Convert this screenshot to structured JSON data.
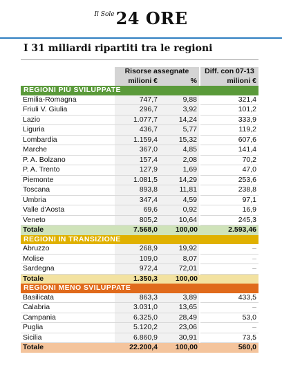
{
  "header": {
    "logo_small": "Il Sole",
    "logo_big": "24 ORE"
  },
  "title": "I 31 miliardi ripartiti tra le regioni",
  "columns": {
    "risorse": "Risorse assegnate",
    "diff": "Diff. con 07-13",
    "milioni": "milioni €",
    "pct": "%",
    "diff_unit": "milioni €"
  },
  "sections": [
    {
      "title": "REGIONI PIÙ SVILUPPATE",
      "color": "#5a9a3a",
      "rows": [
        {
          "name": "Emilia-Romagna",
          "mil": "747,7",
          "pct": "9,88",
          "diff": "321,4"
        },
        {
          "name": "Friuli V. Giulia",
          "mil": "296,7",
          "pct": "3,92",
          "diff": "101,2"
        },
        {
          "name": "Lazio",
          "mil": "1.077,7",
          "pct": "14,24",
          "diff": "333,9"
        },
        {
          "name": "Liguria",
          "mil": "436,7",
          "pct": "5,77",
          "diff": "119,2"
        },
        {
          "name": "Lombardia",
          "mil": "1.159,4",
          "pct": "15,32",
          "diff": "607,6"
        },
        {
          "name": "Marche",
          "mil": "367,0",
          "pct": "4,85",
          "diff": "141,4"
        },
        {
          "name": "P. A. Bolzano",
          "mil": "157,4",
          "pct": "2,08",
          "diff": "70,2"
        },
        {
          "name": "P. A. Trento",
          "mil": "127,9",
          "pct": "1,69",
          "diff": "47,0"
        },
        {
          "name": "Piemonte",
          "mil": "1.081,5",
          "pct": "14,29",
          "diff": "253,6"
        },
        {
          "name": "Toscana",
          "mil": "893,8",
          "pct": "11,81",
          "diff": "238,8"
        },
        {
          "name": "Umbria",
          "mil": "347,4",
          "pct": "4,59",
          "diff": "97,1"
        },
        {
          "name": "Valle d'Aosta",
          "mil": "69,6",
          "pct": "0,92",
          "diff": "16,9"
        },
        {
          "name": "Veneto",
          "mil": "805,2",
          "pct": "10,64",
          "diff": "245,3"
        }
      ],
      "total": {
        "name": "Totale",
        "mil": "7.568,0",
        "pct": "100,00",
        "diff": "2.593,46"
      }
    },
    {
      "title": "REGIONI IN TRANSIZIONE",
      "color": "#e0b100",
      "rows": [
        {
          "name": "Abruzzo",
          "mil": "268,9",
          "pct": "19,92",
          "diff": "–"
        },
        {
          "name": "Molise",
          "mil": "109,0",
          "pct": "8,07",
          "diff": "–"
        },
        {
          "name": "Sardegna",
          "mil": "972,4",
          "pct": "72,01",
          "diff": "–"
        }
      ],
      "total": {
        "name": "Totale",
        "mil": "1.350,3",
        "pct": "100,00",
        "diff": ""
      }
    },
    {
      "title": "REGIONI MENO SVILUPPATE",
      "color": "#e06a1b",
      "rows": [
        {
          "name": "Basilicata",
          "mil": "863,3",
          "pct": "3,89",
          "diff": "433,5"
        },
        {
          "name": "Calabria",
          "mil": "3.031,0",
          "pct": "13,65",
          "diff": "–"
        },
        {
          "name": "Campania",
          "mil": "6.325,0",
          "pct": "28,49",
          "diff": "53,0"
        },
        {
          "name": "Puglia",
          "mil": "5.120,2",
          "pct": "23,06",
          "diff": "–"
        },
        {
          "name": "Sicilia",
          "mil": "6.860,9",
          "pct": "30,91",
          "diff": "73,5"
        }
      ],
      "total": {
        "name": "Totale",
        "mil": "22.200,4",
        "pct": "100,00",
        "diff": "560,0"
      }
    }
  ]
}
